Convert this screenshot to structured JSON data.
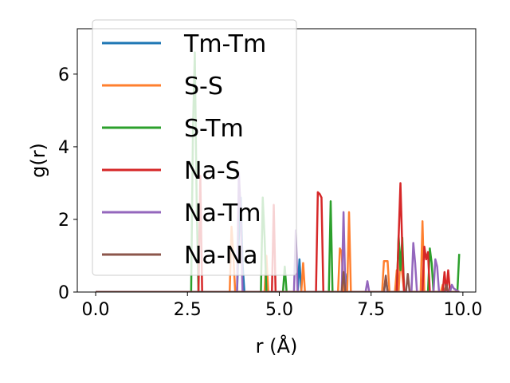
{
  "chart_data": {
    "type": "line",
    "title": "",
    "xlabel": "r (Å)",
    "ylabel": "g(r)",
    "xlim": [
      -0.5,
      10.35
    ],
    "ylim": [
      0,
      7.25
    ],
    "xticks": [
      0.0,
      2.5,
      5.0,
      7.5,
      10.0
    ],
    "xtick_labels": [
      "0.0",
      "2.5",
      "5.0",
      "7.5",
      "10.0"
    ],
    "yticks": [
      0,
      2,
      4,
      6
    ],
    "ytick_labels": [
      "0",
      "2",
      "4",
      "6"
    ],
    "grid": false,
    "legend_position": "upper-left",
    "series": [
      {
        "name": "Tm-Tm",
        "color": "#1f77b4",
        "x": [
          0.0,
          3.85,
          3.9,
          3.95,
          4.0,
          4.05,
          5.5,
          5.55,
          5.6,
          6.75,
          6.8,
          6.85,
          7.85,
          7.9,
          7.95,
          9.9
        ],
        "y": [
          0,
          0,
          1.5,
          2.6,
          0.8,
          0,
          0,
          0.9,
          0,
          0,
          0.5,
          0,
          0,
          0.4,
          0,
          0
        ]
      },
      {
        "name": "S-S",
        "color": "#ff7f2e",
        "x": [
          0.0,
          3.65,
          3.7,
          3.75,
          3.8,
          4.6,
          4.65,
          4.7,
          5.6,
          5.65,
          5.7,
          6.6,
          6.65,
          6.7,
          6.75,
          6.85,
          6.9,
          6.95,
          7.8,
          7.85,
          7.95,
          8.0,
          8.15,
          8.2,
          8.25,
          8.3,
          8.35,
          8.4,
          8.85,
          8.9,
          8.95,
          9.4,
          9.45,
          9.5,
          9.9
        ],
        "y": [
          0,
          0,
          1.8,
          1.0,
          0,
          0,
          1.0,
          0,
          0,
          0.8,
          0,
          0,
          1.2,
          1.1,
          0,
          0,
          2.2,
          0,
          0,
          0.85,
          0.85,
          0,
          0,
          0.6,
          0,
          1.0,
          0.5,
          0,
          0,
          1.95,
          0,
          0,
          0.2,
          0,
          0
        ]
      },
      {
        "name": "S-Tm",
        "color": "#2ca02c",
        "x": [
          0.0,
          2.6,
          2.65,
          2.7,
          2.75,
          2.8,
          4.5,
          4.55,
          4.6,
          4.65,
          5.1,
          5.15,
          5.2,
          6.35,
          6.4,
          6.45,
          8.2,
          8.25,
          8.3,
          8.35,
          8.4,
          9.05,
          9.1,
          9.15,
          9.2,
          9.85,
          9.9
        ],
        "y": [
          0,
          0,
          4.5,
          6.6,
          2.5,
          0,
          0,
          2.6,
          1.5,
          0,
          0,
          0.7,
          0,
          0,
          2.5,
          0,
          0,
          1.55,
          0.6,
          1.5,
          0,
          0,
          1.2,
          0.8,
          0,
          0,
          1.05
        ]
      },
      {
        "name": "Na-S",
        "color": "#d62728",
        "x": [
          0.0,
          2.8,
          2.85,
          2.9,
          4.8,
          4.85,
          4.9,
          6.0,
          6.05,
          6.1,
          6.15,
          6.2,
          8.2,
          8.25,
          8.3,
          8.35,
          8.4,
          8.9,
          8.95,
          9.0,
          9.05,
          9.1,
          9.45,
          9.5,
          9.55,
          9.6,
          9.65,
          9.9
        ],
        "y": [
          0,
          0,
          3.2,
          0,
          0,
          2.4,
          0,
          0,
          2.75,
          2.7,
          2.6,
          0,
          0,
          1.5,
          3.0,
          1.2,
          0,
          0,
          1.25,
          0.9,
          1.1,
          0,
          0,
          0.55,
          0,
          0.6,
          0,
          0
        ]
      },
      {
        "name": "Na-Tm",
        "color": "#9467bd",
        "x": [
          0.0,
          3.85,
          3.9,
          3.95,
          4.0,
          5.4,
          5.45,
          5.5,
          6.7,
          6.75,
          6.8,
          7.35,
          7.4,
          7.45,
          8.6,
          8.65,
          8.7,
          8.75,
          9.2,
          9.25,
          9.3,
          9.35,
          9.65,
          9.7,
          9.75,
          9.9
        ],
        "y": [
          0,
          0,
          3.3,
          2.2,
          0,
          0,
          1.7,
          0,
          0,
          2.2,
          0,
          0,
          0.3,
          0,
          0,
          1.35,
          0.8,
          0,
          0,
          0.9,
          0.7,
          0,
          0,
          0.2,
          0.1,
          0
        ]
      },
      {
        "name": "Na-Na",
        "color": "#8c564b",
        "x": [
          0.0,
          6.7,
          6.75,
          6.8,
          7.85,
          7.9,
          7.95,
          8.45,
          8.5,
          8.55,
          9.5,
          9.55,
          9.6,
          9.9
        ],
        "y": [
          0,
          0,
          0.55,
          0,
          0,
          0.45,
          0,
          0,
          0.5,
          0,
          0,
          0.2,
          0,
          0
        ]
      }
    ]
  }
}
